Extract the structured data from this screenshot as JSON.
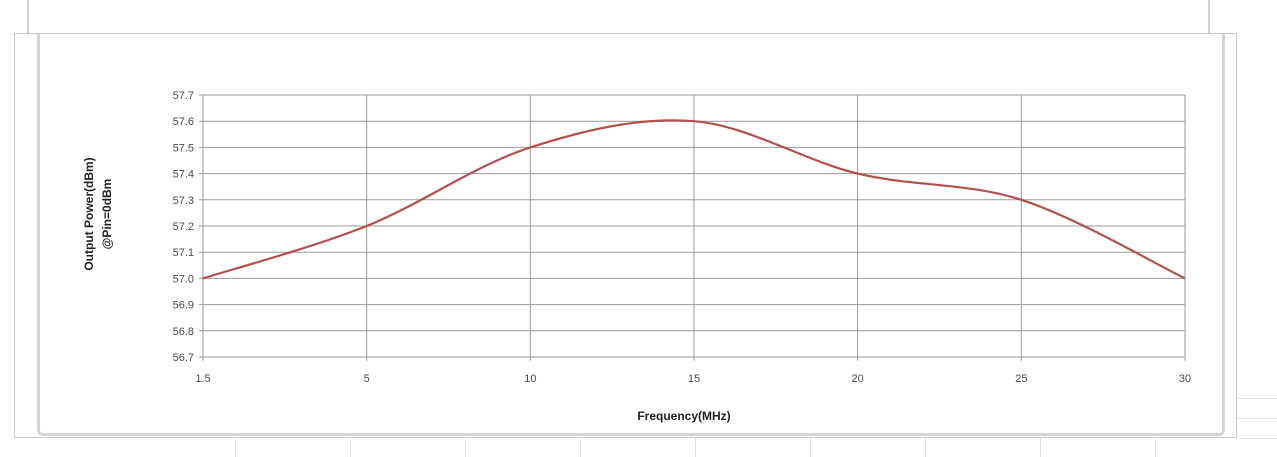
{
  "chart_data": {
    "type": "line",
    "title": "",
    "xlabel": "Frequency(MHz)",
    "ylabel": "Output Power(dBm)",
    "ylabel_line2": "@Pin=0dBm",
    "x_tick_labels": [
      "1.5",
      "5",
      "10",
      "15",
      "20",
      "25",
      "30"
    ],
    "y_tick_labels": [
      "57.7",
      "57.6",
      "57.5",
      "57.4",
      "57.3",
      "57.2",
      "57.1",
      "57.0",
      "56.9",
      "56.8",
      "56.7"
    ],
    "ylim": [
      56.7,
      57.7
    ],
    "x_scale": "categorical-evenly-spaced",
    "grid": true,
    "legend": "none",
    "series": [
      {
        "color": "#b5504d",
        "x": [
          "1.5",
          "5",
          "10",
          "15",
          "20",
          "25",
          "30"
        ],
        "values": [
          57.0,
          57.2,
          57.5,
          57.6,
          57.4,
          57.3,
          57.0
        ],
        "smooth": true
      }
    ]
  },
  "colors": {
    "gridline": "#9a9a9a",
    "axis": "#8c8c8c",
    "line": "#b5504d"
  }
}
